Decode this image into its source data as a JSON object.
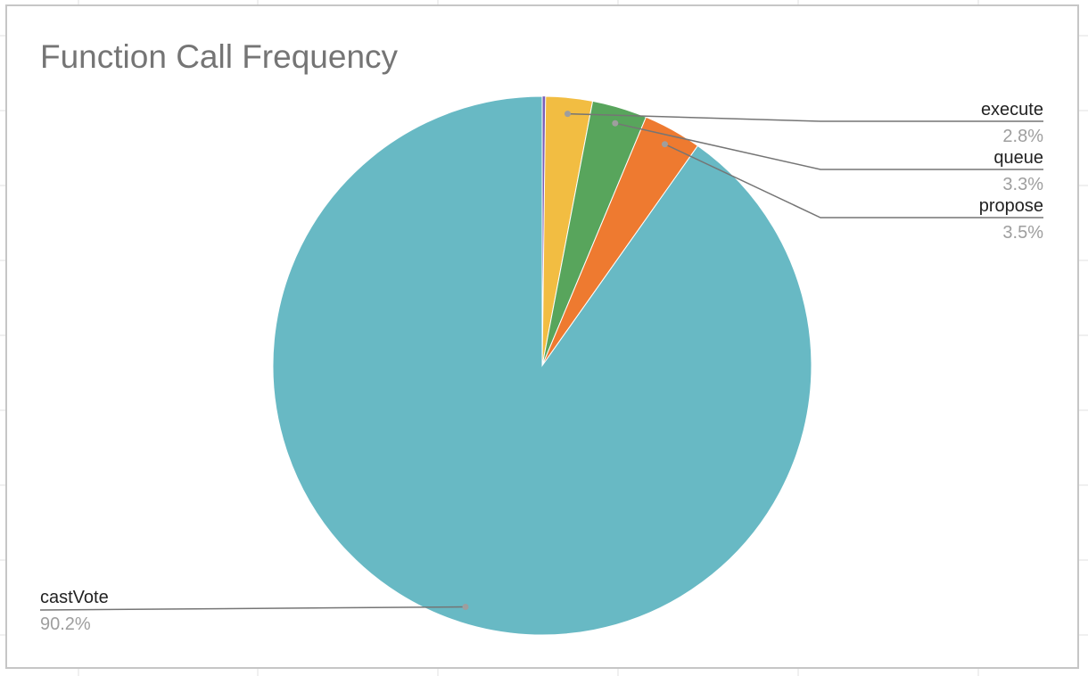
{
  "chart_data": {
    "type": "pie",
    "title": "Function Call Frequency",
    "start_angle_deg": 0,
    "direction": "clockwise",
    "slices": [
      {
        "label": "",
        "value": 0.2,
        "value_label": "",
        "color": "#7b5fb8"
      },
      {
        "label": "execute",
        "value": 2.8,
        "value_label": "2.8%",
        "color": "#f2bd42"
      },
      {
        "label": "queue",
        "value": 3.3,
        "value_label": "3.3%",
        "color": "#58a55c"
      },
      {
        "label": "propose",
        "value": 3.5,
        "value_label": "3.5%",
        "color": "#ee7a30"
      },
      {
        "label": "castVote",
        "value": 90.2,
        "value_label": "90.2%",
        "color": "#68b9c4"
      }
    ],
    "legend": "none"
  }
}
